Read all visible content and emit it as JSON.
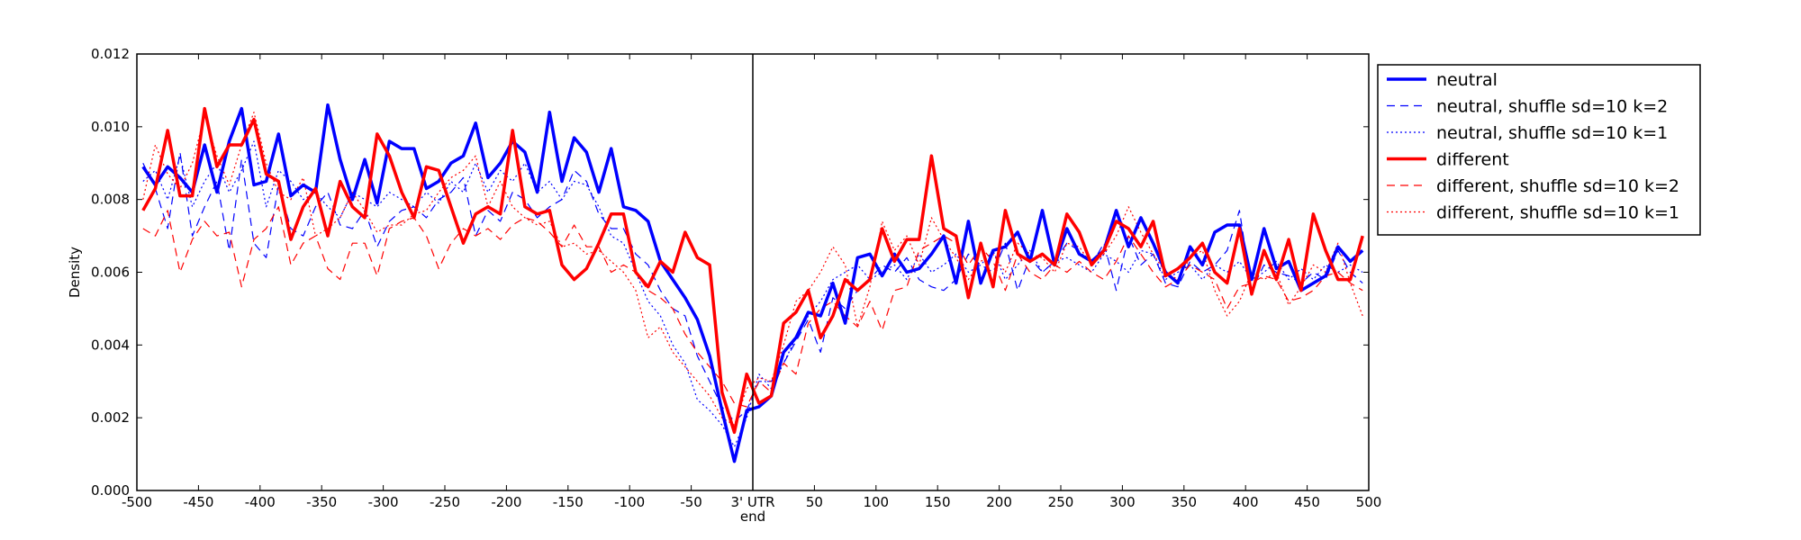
{
  "chart_data": {
    "type": "line",
    "title": "",
    "xlabel": "end",
    "ylabel": "Density",
    "xlim": [
      -500,
      500
    ],
    "ylim": [
      0,
      0.012
    ],
    "grid": false,
    "legend_position": "outside-top-right",
    "vline_x": 0,
    "x_tick_labels": [
      "-500",
      "-450",
      "-400",
      "-350",
      "-300",
      "-250",
      "-200",
      "-150",
      "-100",
      "-50",
      "3' UTR",
      "50",
      "100",
      "150",
      "200",
      "250",
      "300",
      "350",
      "400",
      "450",
      "500"
    ],
    "y_tick_labels": [
      "0.000",
      "0.002",
      "0.004",
      "0.006",
      "0.008",
      "0.010",
      "0.012"
    ],
    "x": [
      -495,
      -485,
      -475,
      -465,
      -455,
      -445,
      -435,
      -425,
      -415,
      -405,
      -395,
      -385,
      -375,
      -365,
      -355,
      -345,
      -335,
      -325,
      -315,
      -305,
      -295,
      -285,
      -275,
      -265,
      -255,
      -245,
      -235,
      -225,
      -215,
      -205,
      -195,
      -185,
      -175,
      -165,
      -155,
      -145,
      -135,
      -125,
      -115,
      -105,
      -95,
      -85,
      -75,
      -65,
      -55,
      -45,
      -35,
      -25,
      -15,
      -5,
      5,
      15,
      25,
      35,
      45,
      55,
      65,
      75,
      85,
      95,
      105,
      115,
      125,
      135,
      145,
      155,
      165,
      175,
      185,
      195,
      205,
      215,
      225,
      235,
      245,
      255,
      265,
      275,
      285,
      295,
      305,
      315,
      325,
      335,
      345,
      355,
      365,
      375,
      385,
      395,
      405,
      415,
      425,
      435,
      445,
      455,
      465,
      475,
      485,
      495
    ],
    "series": [
      {
        "name": "neutral",
        "color": "#0000ff",
        "style": "solid",
        "width": 3.5,
        "values": [
          0.0089,
          0.0084,
          0.0089,
          0.0086,
          0.0082,
          0.0095,
          0.0082,
          0.0096,
          0.0105,
          0.0084,
          0.0085,
          0.0098,
          0.0081,
          0.0084,
          0.0082,
          0.0106,
          0.0091,
          0.008,
          0.0091,
          0.0079,
          0.0096,
          0.0094,
          0.0094,
          0.0083,
          0.0085,
          0.009,
          0.0092,
          0.0101,
          0.0086,
          0.009,
          0.0096,
          0.0093,
          0.0082,
          0.0104,
          0.0085,
          0.0097,
          0.0093,
          0.0082,
          0.0094,
          0.0078,
          0.0077,
          0.0074,
          0.0063,
          0.0058,
          0.0053,
          0.0047,
          0.0037,
          0.0022,
          0.0008,
          0.0022,
          0.0023,
          0.0026,
          0.0038,
          0.0042,
          0.0049,
          0.0048,
          0.0057,
          0.0046,
          0.0064,
          0.0065,
          0.0059,
          0.0065,
          0.006,
          0.0061,
          0.0065,
          0.007,
          0.0057,
          0.0074,
          0.0057,
          0.0066,
          0.0067,
          0.0071,
          0.0063,
          0.0077,
          0.0062,
          0.0072,
          0.0065,
          0.0063,
          0.0066,
          0.0077,
          0.0067,
          0.0075,
          0.0068,
          0.006,
          0.0057,
          0.0067,
          0.0062,
          0.0071,
          0.0073,
          0.0073,
          0.0058,
          0.0072,
          0.0061,
          0.0063,
          0.0055,
          0.0057,
          0.0059,
          0.0067,
          0.0063,
          0.0066
        ]
      },
      {
        "name": "neutral, shuffle sd=10 k=2",
        "color": "#0000ff",
        "style": "dashed",
        "width": 1.2,
        "values": [
          0.009,
          0.0083,
          0.0072,
          0.0093,
          0.007,
          0.0078,
          0.0085,
          0.0066,
          0.0091,
          0.0068,
          0.0064,
          0.0084,
          0.0072,
          0.007,
          0.0078,
          0.0082,
          0.0073,
          0.0072,
          0.0077,
          0.0067,
          0.0074,
          0.0077,
          0.0078,
          0.0075,
          0.008,
          0.0082,
          0.0086,
          0.007,
          0.0077,
          0.0074,
          0.0082,
          0.008,
          0.0075,
          0.0078,
          0.008,
          0.0088,
          0.0085,
          0.0076,
          0.0072,
          0.0072,
          0.0065,
          0.0062,
          0.0055,
          0.005,
          0.0048,
          0.0037,
          0.003,
          0.0023,
          0.0019,
          0.0022,
          0.003,
          0.003,
          0.0035,
          0.0041,
          0.0047,
          0.0038,
          0.0053,
          0.005,
          0.0055,
          0.0058,
          0.0062,
          0.006,
          0.0064,
          0.0058,
          0.0056,
          0.0055,
          0.0058,
          0.0065,
          0.0062,
          0.006,
          0.0068,
          0.0055,
          0.0064,
          0.006,
          0.0063,
          0.0068,
          0.0066,
          0.0062,
          0.0068,
          0.0055,
          0.007,
          0.0062,
          0.0065,
          0.0057,
          0.0056,
          0.0063,
          0.006,
          0.0062,
          0.0066,
          0.0077,
          0.0055,
          0.0062,
          0.006,
          0.0059,
          0.0057,
          0.006,
          0.0058,
          0.0066,
          0.006,
          0.0057
        ]
      },
      {
        "name": "neutral, shuffle sd=10 k=1",
        "color": "#0000ff",
        "style": "dotted",
        "width": 1.2,
        "values": [
          0.0085,
          0.0088,
          0.008,
          0.0092,
          0.0078,
          0.0085,
          0.009,
          0.0082,
          0.0088,
          0.0096,
          0.0078,
          0.0088,
          0.0085,
          0.008,
          0.0082,
          0.0078,
          0.0075,
          0.0082,
          0.008,
          0.0078,
          0.0082,
          0.008,
          0.0078,
          0.0082,
          0.0079,
          0.0085,
          0.0082,
          0.009,
          0.0082,
          0.0088,
          0.0085,
          0.009,
          0.0082,
          0.0085,
          0.008,
          0.0085,
          0.0084,
          0.0078,
          0.007,
          0.0068,
          0.006,
          0.0052,
          0.0048,
          0.004,
          0.0035,
          0.0025,
          0.0022,
          0.0018,
          0.0012,
          0.002,
          0.0032,
          0.0028,
          0.0035,
          0.0042,
          0.0048,
          0.0052,
          0.0058,
          0.006,
          0.0062,
          0.0058,
          0.006,
          0.0062,
          0.0058,
          0.0065,
          0.006,
          0.0062,
          0.0065,
          0.006,
          0.0062,
          0.0066,
          0.0058,
          0.0062,
          0.0066,
          0.006,
          0.0063,
          0.0064,
          0.0062,
          0.006,
          0.0065,
          0.0063,
          0.006,
          0.0066,
          0.0065,
          0.0058,
          0.006,
          0.0062,
          0.0058,
          0.0062,
          0.006,
          0.0063,
          0.0058,
          0.006,
          0.0063,
          0.0058,
          0.0061,
          0.0058,
          0.0062,
          0.006,
          0.0062,
          0.006
        ]
      },
      {
        "name": "different",
        "color": "#ff0000",
        "style": "solid",
        "width": 3.5,
        "values": [
          0.0077,
          0.0083,
          0.0099,
          0.0081,
          0.0081,
          0.0105,
          0.0089,
          0.0095,
          0.0095,
          0.0102,
          0.0087,
          0.0085,
          0.0069,
          0.0078,
          0.0083,
          0.007,
          0.0085,
          0.0078,
          0.0075,
          0.0098,
          0.0092,
          0.0082,
          0.0075,
          0.0089,
          0.0088,
          0.0078,
          0.0068,
          0.0076,
          0.0078,
          0.0076,
          0.0099,
          0.0078,
          0.0076,
          0.0077,
          0.0062,
          0.0058,
          0.0061,
          0.0068,
          0.0076,
          0.0076,
          0.006,
          0.0056,
          0.0063,
          0.006,
          0.0071,
          0.0064,
          0.0062,
          0.0027,
          0.0016,
          0.0032,
          0.0024,
          0.0026,
          0.0046,
          0.0049,
          0.0055,
          0.0042,
          0.0048,
          0.0058,
          0.0055,
          0.0058,
          0.0072,
          0.0063,
          0.0069,
          0.0069,
          0.0092,
          0.0072,
          0.007,
          0.0053,
          0.0068,
          0.0056,
          0.0077,
          0.0065,
          0.0063,
          0.0065,
          0.0062,
          0.0076,
          0.0071,
          0.0062,
          0.0066,
          0.0074,
          0.0072,
          0.0067,
          0.0074,
          0.0059,
          0.0061,
          0.0064,
          0.0068,
          0.006,
          0.0057,
          0.0072,
          0.0054,
          0.0066,
          0.0058,
          0.0069,
          0.0055,
          0.0076,
          0.0066,
          0.0058,
          0.0058,
          0.007
        ]
      },
      {
        "name": "different, shuffle sd=10 k=2",
        "color": "#ff0000",
        "style": "dashed",
        "width": 1.2,
        "values": [
          0.0072,
          0.007,
          0.0077,
          0.006,
          0.0069,
          0.0074,
          0.007,
          0.0071,
          0.0056,
          0.0069,
          0.0072,
          0.0078,
          0.0062,
          0.0068,
          0.007,
          0.0061,
          0.0058,
          0.0068,
          0.0068,
          0.0059,
          0.0072,
          0.0074,
          0.0075,
          0.007,
          0.0061,
          0.0068,
          0.0072,
          0.007,
          0.0072,
          0.0069,
          0.0073,
          0.0075,
          0.0074,
          0.0071,
          0.0067,
          0.0073,
          0.0067,
          0.0067,
          0.006,
          0.0062,
          0.006,
          0.0055,
          0.0053,
          0.005,
          0.0043,
          0.0038,
          0.0034,
          0.003,
          0.0024,
          0.0023,
          0.003,
          0.0027,
          0.0035,
          0.0032,
          0.0046,
          0.005,
          0.0052,
          0.0048,
          0.0045,
          0.0052,
          0.0044,
          0.0055,
          0.0056,
          0.0066,
          0.0068,
          0.007,
          0.0068,
          0.0062,
          0.0067,
          0.0063,
          0.0055,
          0.0065,
          0.006,
          0.0058,
          0.0062,
          0.006,
          0.0063,
          0.006,
          0.0058,
          0.0063,
          0.007,
          0.0065,
          0.006,
          0.0056,
          0.0058,
          0.0062,
          0.006,
          0.0058,
          0.005,
          0.0056,
          0.0057,
          0.0059,
          0.0058,
          0.0052,
          0.0053,
          0.0055,
          0.0059,
          0.006,
          0.0057,
          0.0055
        ]
      },
      {
        "name": "different, shuffle sd=10 k=1",
        "color": "#ff0000",
        "style": "dotted",
        "width": 1.2,
        "values": [
          0.008,
          0.0095,
          0.0087,
          0.0083,
          0.009,
          0.0103,
          0.0092,
          0.0084,
          0.0095,
          0.0104,
          0.009,
          0.0082,
          0.008,
          0.0086,
          0.007,
          0.0072,
          0.0075,
          0.0082,
          0.0077,
          0.0071,
          0.0073,
          0.0073,
          0.0076,
          0.0077,
          0.0082,
          0.0086,
          0.0088,
          0.0092,
          0.0078,
          0.0085,
          0.0078,
          0.0075,
          0.0073,
          0.0074,
          0.0067,
          0.0068,
          0.0065,
          0.0066,
          0.0063,
          0.006,
          0.0055,
          0.0042,
          0.0045,
          0.0038,
          0.0034,
          0.003,
          0.0026,
          0.002,
          0.0018,
          0.0028,
          0.0031,
          0.003,
          0.004,
          0.0052,
          0.0055,
          0.006,
          0.0067,
          0.0062,
          0.0045,
          0.0056,
          0.0074,
          0.0066,
          0.007,
          0.0062,
          0.0075,
          0.0069,
          0.0064,
          0.0058,
          0.0063,
          0.0065,
          0.006,
          0.0068,
          0.0065,
          0.0064,
          0.006,
          0.0068,
          0.0067,
          0.0062,
          0.0065,
          0.007,
          0.0078,
          0.0071,
          0.0065,
          0.006,
          0.0058,
          0.0064,
          0.0066,
          0.0055,
          0.0048,
          0.0052,
          0.006,
          0.0058,
          0.006,
          0.0051,
          0.0056,
          0.0062,
          0.006,
          0.0068,
          0.0057,
          0.0048
        ]
      }
    ]
  }
}
